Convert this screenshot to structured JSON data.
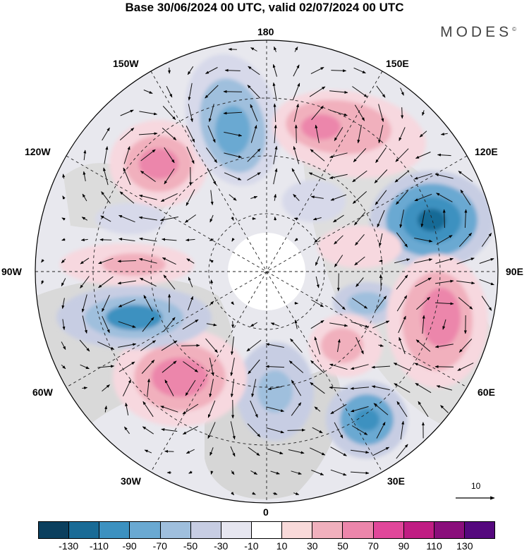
{
  "title": "Base 30/06/2024 00 UTC, valid 02/07/2024 00 UTC",
  "brand": "MODES",
  "brand_mark": "©",
  "map": {
    "labels": {
      "n180": "180",
      "w150": "150W",
      "e150": "150E",
      "w120": "120W",
      "e120": "120E",
      "w90": "90W",
      "e90": "90E",
      "w60": "60W",
      "e60": "60E",
      "w30": "30W",
      "e30": "30E",
      "s0": "0"
    }
  },
  "reference_vector": "10",
  "colorbar": {
    "colors": [
      "#0a3f5e",
      "#196b96",
      "#3c91c0",
      "#6aa9d2",
      "#9fbfdd",
      "#c7cde3",
      "#e6e6f0",
      "#ffffff",
      "#f9dada",
      "#f1b0bd",
      "#ec86ab",
      "#e1479a",
      "#c01d83",
      "#8a0e7b",
      "#55087e"
    ],
    "ticks": [
      "-130",
      "-110",
      "-90",
      "-70",
      "-50",
      "-30",
      "-10",
      "10",
      "30",
      "50",
      "70",
      "90",
      "110",
      "130"
    ]
  }
}
